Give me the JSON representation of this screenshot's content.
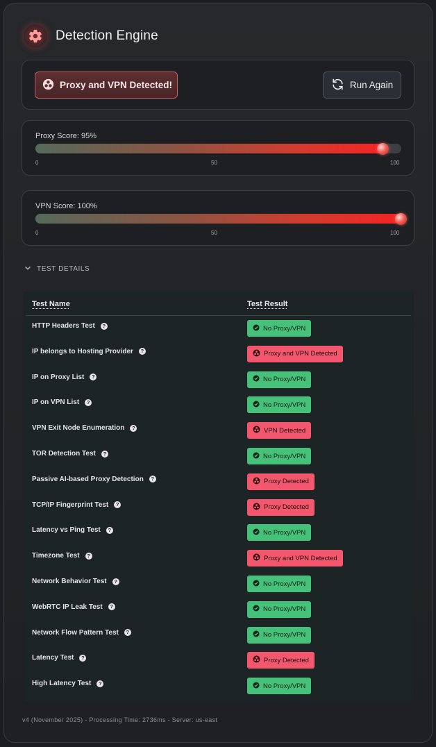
{
  "header": {
    "title": "Detection Engine",
    "icon": "gear-icon"
  },
  "status": {
    "badge_label": "Proxy and VPN Detected!",
    "badge_icon": "biohazard-icon",
    "run_again_label": "Run Again",
    "run_again_icon": "refresh-icon"
  },
  "scores": {
    "proxy": {
      "label": "Proxy Score: 95%",
      "value": 95
    },
    "vpn": {
      "label": "VPN Score: 100%",
      "value": 100
    },
    "ticks": [
      "0",
      "50",
      "100"
    ]
  },
  "details": {
    "toggle_label": "TEST DETAILS",
    "col_name": "Test Name",
    "col_result": "Test Result",
    "rows": [
      {
        "name": "HTTP Headers Test",
        "result": "No Proxy/VPN",
        "status": "ok"
      },
      {
        "name": "IP belongs to Hosting Provider",
        "result": "Proxy and VPN Detected",
        "status": "bad"
      },
      {
        "name": "IP on Proxy List",
        "result": "No Proxy/VPN",
        "status": "ok"
      },
      {
        "name": "IP on VPN List",
        "result": "No Proxy/VPN",
        "status": "ok"
      },
      {
        "name": "VPN Exit Node Enumeration",
        "result": "VPN Detected",
        "status": "bad"
      },
      {
        "name": "TOR Detection Test",
        "result": "No Proxy/VPN",
        "status": "ok"
      },
      {
        "name": "Passive AI-based Proxy Detection",
        "result": "Proxy Detected",
        "status": "bad"
      },
      {
        "name": "TCP/IP Fingerprint Test",
        "result": "Proxy Detected",
        "status": "bad"
      },
      {
        "name": "Latency vs Ping Test",
        "result": "No Proxy/VPN",
        "status": "ok"
      },
      {
        "name": "Timezone Test",
        "result": "Proxy and VPN Detected",
        "status": "bad"
      },
      {
        "name": "Network Behavior Test",
        "result": "No Proxy/VPN",
        "status": "ok"
      },
      {
        "name": "WebRTC IP Leak Test",
        "result": "No Proxy/VPN",
        "status": "ok"
      },
      {
        "name": "Network Flow Pattern Test",
        "result": "No Proxy/VPN",
        "status": "ok"
      },
      {
        "name": "Latency Test",
        "result": "Proxy Detected",
        "status": "bad"
      },
      {
        "name": "High Latency Test",
        "result": "No Proxy/VPN",
        "status": "ok"
      }
    ]
  },
  "footer": {
    "text": "v4 (November 2025) - Processing Time: 2736ms - Server: us-east"
  },
  "colors": {
    "ok": "#45c17a",
    "bad": "#f3576e",
    "accent": "#f42424"
  }
}
